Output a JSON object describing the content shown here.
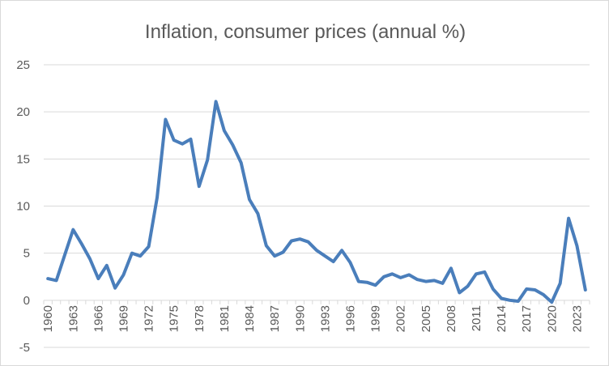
{
  "chart_data": {
    "type": "line",
    "title": "Inflation, consumer prices (annual %)",
    "xlabel": "",
    "ylabel": "",
    "ylim": [
      -5,
      25
    ],
    "yticks": [
      -5,
      0,
      5,
      10,
      15,
      20,
      25
    ],
    "xticks": [
      1960,
      1963,
      1966,
      1969,
      1972,
      1975,
      1978,
      1981,
      1984,
      1987,
      1990,
      1993,
      1996,
      1999,
      2002,
      2005,
      2008,
      2011,
      2014,
      2017,
      2020,
      2023
    ],
    "grid": "horizontal",
    "legend": "none",
    "line_color": "#4a7ebb",
    "x": [
      1960,
      1961,
      1962,
      1963,
      1964,
      1965,
      1966,
      1967,
      1968,
      1969,
      1970,
      1971,
      1972,
      1973,
      1974,
      1975,
      1976,
      1977,
      1978,
      1979,
      1980,
      1981,
      1982,
      1983,
      1984,
      1985,
      1986,
      1987,
      1988,
      1989,
      1990,
      1991,
      1992,
      1993,
      1994,
      1995,
      1996,
      1997,
      1998,
      1999,
      2000,
      2001,
      2002,
      2003,
      2004,
      2005,
      2006,
      2007,
      2008,
      2009,
      2010,
      2011,
      2012,
      2013,
      2014,
      2015,
      2016,
      2017,
      2018,
      2019,
      2020,
      2021,
      2022,
      2023,
      2024
    ],
    "values": [
      2.3,
      2.1,
      4.8,
      7.5,
      6.0,
      4.4,
      2.3,
      3.7,
      1.3,
      2.7,
      5.0,
      4.7,
      5.7,
      10.9,
      19.2,
      17.0,
      16.6,
      17.1,
      12.1,
      14.9,
      21.1,
      18.0,
      16.5,
      14.6,
      10.7,
      9.2,
      5.8,
      4.7,
      5.1,
      6.3,
      6.5,
      6.2,
      5.3,
      4.7,
      4.1,
      5.3,
      4.0,
      2.0,
      1.9,
      1.6,
      2.5,
      2.8,
      2.4,
      2.7,
      2.2,
      2.0,
      2.1,
      1.8,
      3.4,
      0.8,
      1.5,
      2.8,
      3.0,
      1.2,
      0.2,
      0.0,
      -0.1,
      1.2,
      1.1,
      0.6,
      -0.2,
      1.8,
      8.7,
      5.8,
      1.1
    ]
  }
}
